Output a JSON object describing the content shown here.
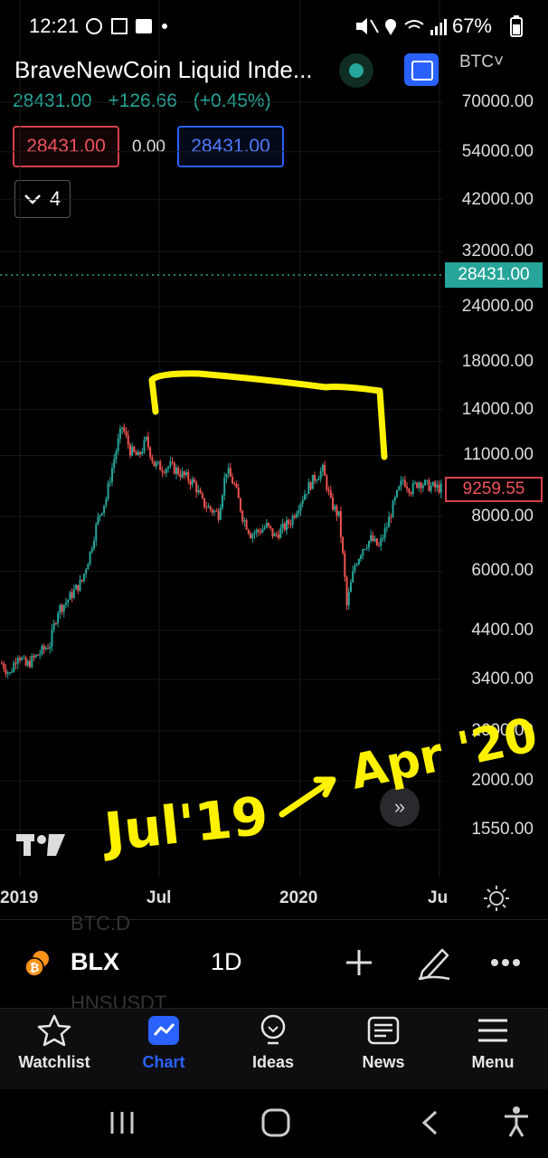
{
  "status_bar": {
    "time": "12:21",
    "battery": "67%"
  },
  "header": {
    "title": "BraveNewCoin Liquid Inde...",
    "last_price": "28431.00",
    "change": "+126.66",
    "change_pct": "(+0.45%)",
    "bid": "28431.00",
    "spread": "0.00",
    "ask": "28431.00",
    "indicator_count": "4",
    "currency": "BTC"
  },
  "chart_data": {
    "type": "candlestick",
    "y_scale": "log",
    "y_ticks": [
      "70000.00",
      "54000.00",
      "42000.00",
      "32000.00",
      "24000.00",
      "18000.00",
      "14000.00",
      "11000.00",
      "8000.00",
      "6000.00",
      "4400.00",
      "3400.00",
      "2600.00",
      "2000.00",
      "1550.00"
    ],
    "x_ticks": [
      "2019",
      "Jul",
      "2020",
      "Ju"
    ],
    "price_labels": {
      "current": "28431.00",
      "last_visible": "9259.55"
    },
    "series_close": [
      3700,
      3500,
      3900,
      3650,
      3800,
      3950,
      4100,
      4900,
      5100,
      5400,
      5700,
      6600,
      7900,
      8800,
      10800,
      12800,
      11300,
      10900,
      11900,
      10500,
      10300,
      10400,
      10100,
      9800,
      9500,
      8600,
      8300,
      8100,
      10200,
      9400,
      8000,
      7300,
      7400,
      7600,
      7200,
      7500,
      7800,
      8500,
      9200,
      9800,
      10200,
      8600,
      8000,
      5000,
      6200,
      6800,
      7100,
      6800,
      7600,
      8700,
      9700,
      9200,
      9600,
      9400,
      9300,
      9259.55
    ],
    "annotations": [
      "Jul'19",
      "Apr '20"
    ]
  },
  "toolbar": {
    "ghost_top": "BTC.D",
    "symbol": "BLX",
    "interval": "1D",
    "ghost_bottom": "HNSUSDT"
  },
  "nav": {
    "watchlist": "Watchlist",
    "chart": "Chart",
    "ideas": "Ideas",
    "news": "News",
    "menu": "Menu"
  },
  "colors": {
    "up": "#26a69a",
    "down": "#ef5350",
    "accent": "#2962ff",
    "annotation": "#fff200"
  }
}
